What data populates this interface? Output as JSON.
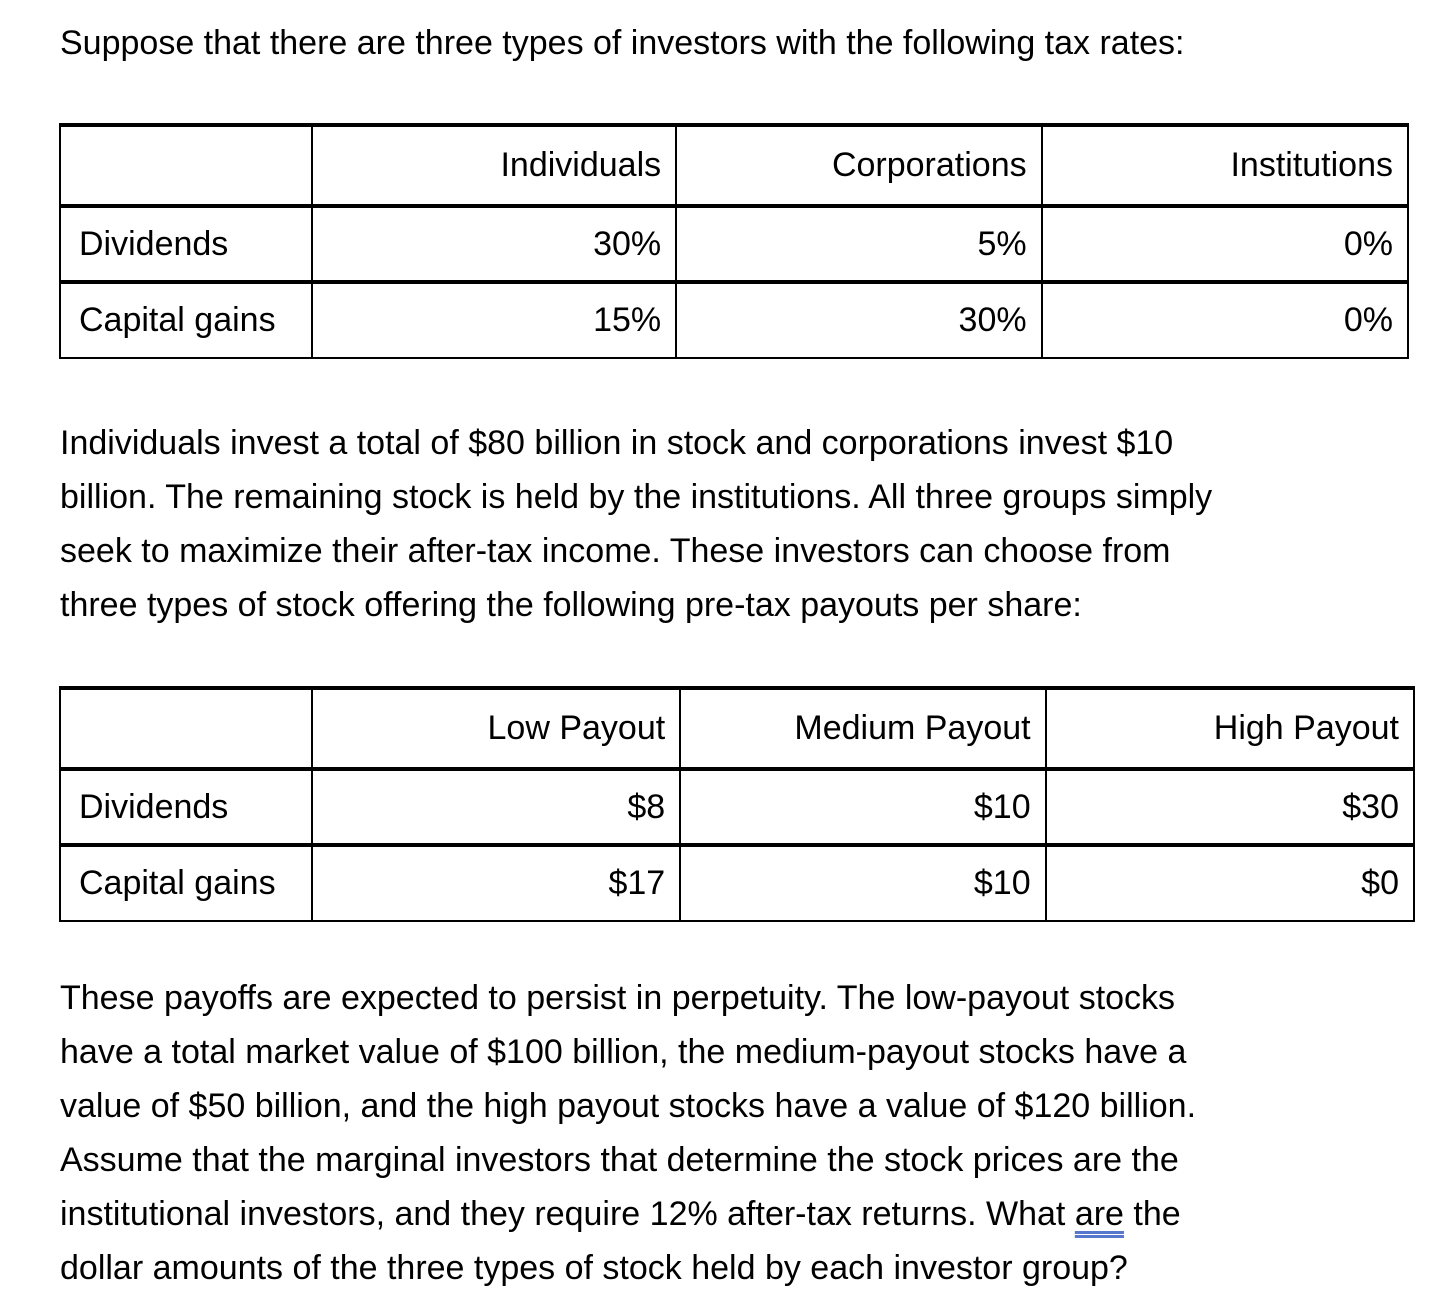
{
  "intro": "Suppose that there are three types of investors with the following tax rates:",
  "tax_table": {
    "headers": [
      "",
      "Individuals",
      "Corporations",
      "Institutions"
    ],
    "rows": [
      {
        "label": "Dividends",
        "values": [
          "30%",
          "5%",
          "0%"
        ]
      },
      {
        "label": "Capital gains",
        "values": [
          "15%",
          "30%",
          "0%"
        ]
      }
    ]
  },
  "para2": {
    "lines": [
      "Individuals invest a total of $80 billion in stock and corporations invest $10",
      "billion. The remaining stock is held by the institutions. All three groups simply",
      "seek to maximize their after-tax income. These investors can choose from",
      "three types of stock offering the following pre-tax payouts per share:"
    ]
  },
  "payout_table": {
    "headers": [
      "",
      "Low Payout",
      "Medium Payout",
      "High Payout"
    ],
    "rows": [
      {
        "label": "Dividends",
        "values": [
          "$8",
          "$10",
          "$30"
        ]
      },
      {
        "label": "Capital gains",
        "values": [
          "$17",
          "$10",
          "$0"
        ]
      }
    ]
  },
  "para3": {
    "lines": [
      "These payoffs are expected to persist in perpetuity. The low-payout stocks",
      "have a total market value of $100 billion, the medium-payout stocks have a",
      "value of $50 billion, and the high payout stocks have a value of $120 billion.",
      "Assume that the marginal investors that determine the stock prices are the"
    ],
    "line5_before": "institutional investors, and they require 12% after-tax returns. What ",
    "line5_underlined": "are",
    "line5_after": " the",
    "line6": "dollar amounts of the three types of stock held by each investor group?"
  }
}
